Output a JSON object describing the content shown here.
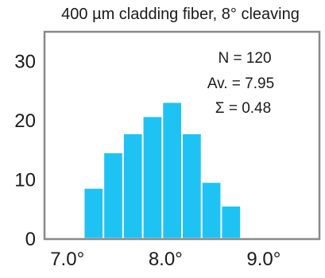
{
  "chart_data": {
    "type": "bar",
    "title": "400 µm cladding fiber, 8° cleaving",
    "xlabel": "",
    "ylabel": "",
    "bin_centers": [
      7.1,
      7.3,
      7.5,
      7.7,
      7.9,
      8.1,
      8.3,
      8.5,
      8.7,
      8.9,
      9.1
    ],
    "values": [
      0,
      8.5,
      14.5,
      17.7,
      20.6,
      23.0,
      17.7,
      9.5,
      5.5,
      0,
      0
    ],
    "bar_color": "#1ec3f4",
    "xlim": [
      6.8,
      9.6
    ],
    "ylim": [
      0,
      35
    ],
    "x_ticks": [
      7.0,
      8.0,
      9.0
    ],
    "x_tick_labels": [
      "7.0°",
      "8.0°",
      "9.0°"
    ],
    "y_ticks": [
      0,
      10,
      20,
      30
    ],
    "y_tick_labels": [
      "0",
      "10",
      "20",
      "30"
    ],
    "grid": false,
    "annotations": [
      "N = 120",
      "Av. = 7.95",
      "Σ = 0.48"
    ]
  }
}
